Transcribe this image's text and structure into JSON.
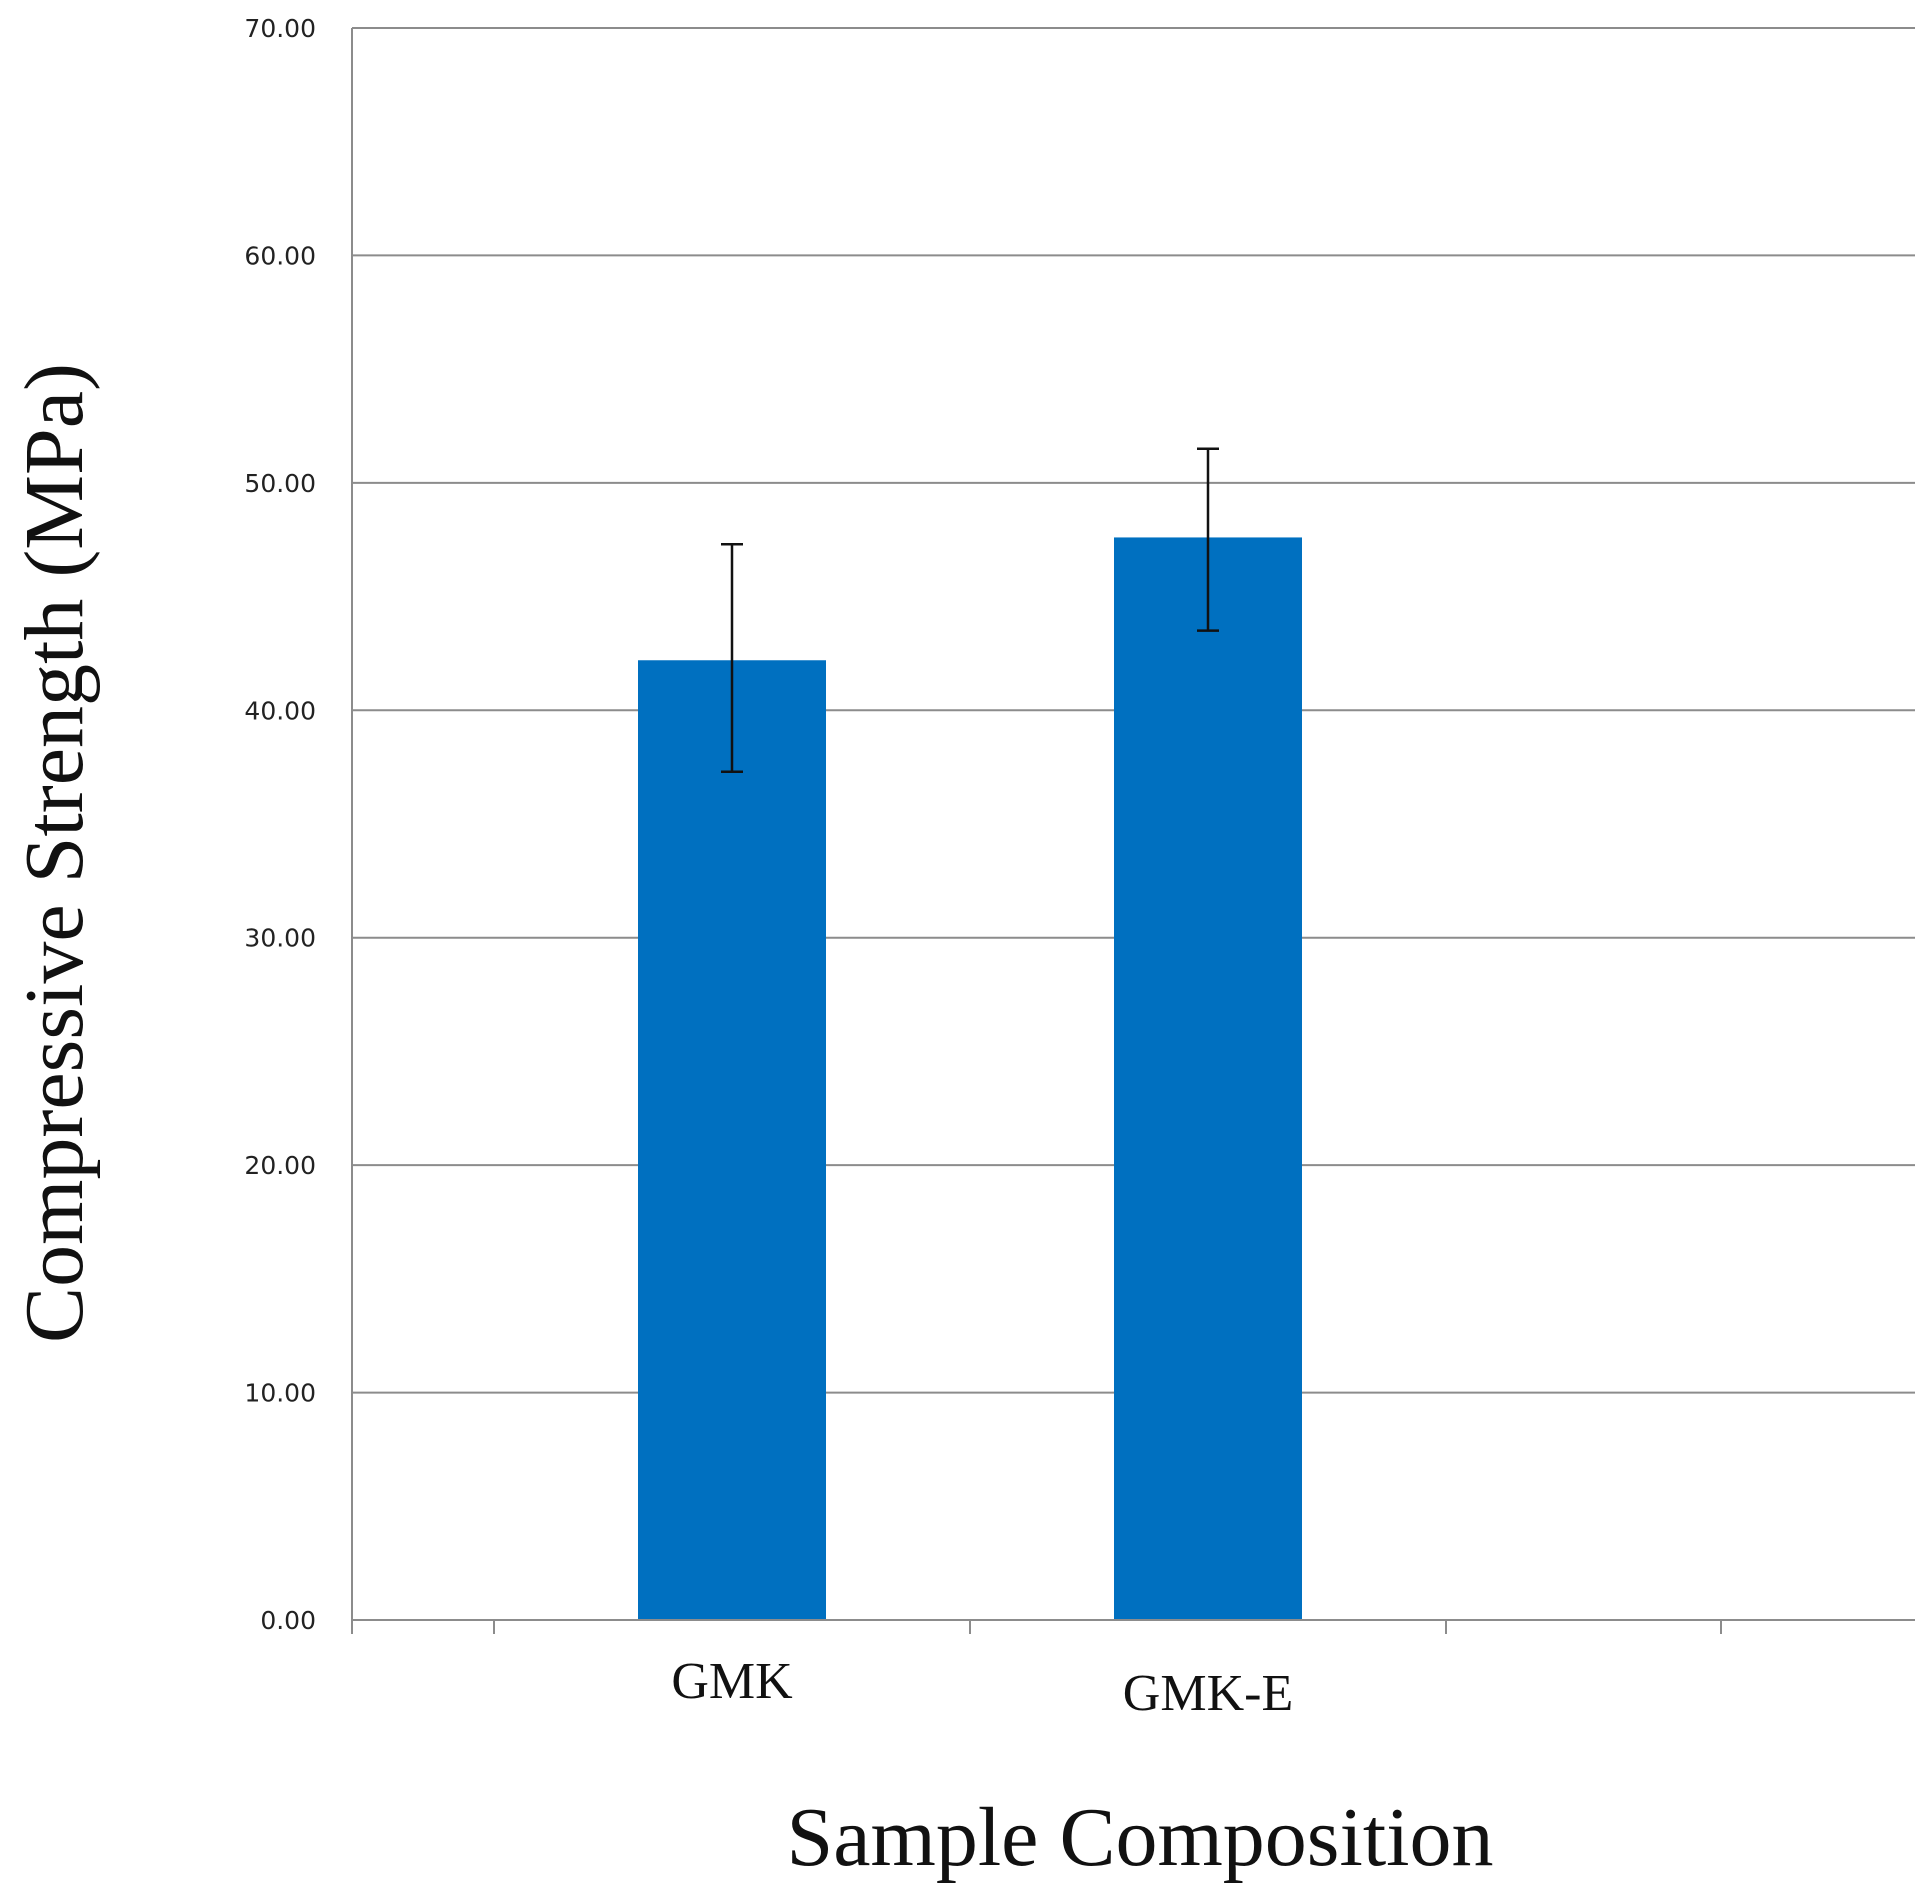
{
  "chart_data": {
    "type": "bar",
    "title": "",
    "xlabel": "Sample Composition",
    "ylabel": "Compressive Strength (MPa)",
    "categories": [
      "GMK",
      "GMK-E"
    ],
    "values": [
      42.2,
      47.6
    ],
    "error_bars": [
      {
        "low": 37.3,
        "high": 47.3
      },
      {
        "low": 43.5,
        "high": 51.5
      }
    ],
    "ylim": [
      0,
      70
    ],
    "yticks": [
      0,
      10,
      20,
      30,
      40,
      50,
      60,
      70
    ],
    "ytick_labels": [
      "0.00",
      "10.00",
      "20.00",
      "30.00",
      "40.00",
      "50.00",
      "60.00",
      "70.00"
    ],
    "grid": true,
    "legend": "none"
  },
  "colors": {
    "bar": "#0070c0",
    "grid": "#8c8c8c",
    "axis": "#8c8c8c",
    "error": "#111111"
  }
}
